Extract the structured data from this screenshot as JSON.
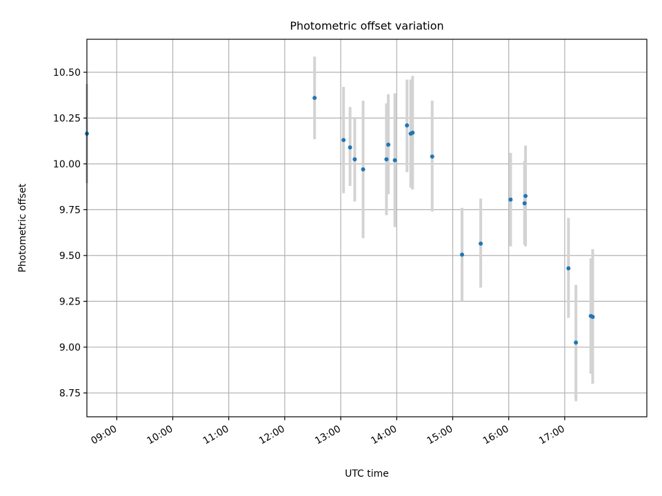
{
  "colors": {
    "point": "#1f77b4",
    "errorbar": "#d3d3d3",
    "grid": "#b0b0b0",
    "axes": "#000000"
  },
  "chart_data": {
    "type": "scatter",
    "title": "Photometric offset variation",
    "xlabel": "UTC time",
    "ylabel": "Photometric offset",
    "grid": true,
    "x_is_time": true,
    "xlim": [
      "08:28",
      "18:28"
    ],
    "ylim": [
      8.62,
      10.68
    ],
    "x_ticks": [
      "09:00",
      "10:00",
      "11:00",
      "12:00",
      "13:00",
      "14:00",
      "15:00",
      "16:00",
      "17:00"
    ],
    "y_ticks": [
      "8.75",
      "9.00",
      "9.25",
      "9.50",
      "9.75",
      "10.00",
      "10.25",
      "10.50"
    ],
    "points": [
      {
        "t": "08:28",
        "y": 10.165,
        "lo": 9.895,
        "hi": 10.435
      },
      {
        "t": "12:32",
        "y": 10.36,
        "lo": 10.135,
        "hi": 10.585
      },
      {
        "t": "13:03",
        "y": 10.13,
        "lo": 9.84,
        "hi": 10.42
      },
      {
        "t": "13:10",
        "y": 10.09,
        "lo": 9.88,
        "hi": 10.31
      },
      {
        "t": "13:15",
        "y": 10.025,
        "lo": 9.795,
        "hi": 10.255
      },
      {
        "t": "13:24",
        "y": 9.97,
        "lo": 9.595,
        "hi": 10.345
      },
      {
        "t": "13:49",
        "y": 10.025,
        "lo": 9.72,
        "hi": 10.33
      },
      {
        "t": "13:51",
        "y": 10.105,
        "lo": 9.835,
        "hi": 10.38
      },
      {
        "t": "13:58",
        "y": 10.02,
        "lo": 9.655,
        "hi": 10.385
      },
      {
        "t": "14:11",
        "y": 10.21,
        "lo": 9.955,
        "hi": 10.46
      },
      {
        "t": "14:15",
        "y": 10.165,
        "lo": 9.87,
        "hi": 10.46
      },
      {
        "t": "14:17",
        "y": 10.17,
        "lo": 9.86,
        "hi": 10.48
      },
      {
        "t": "14:38",
        "y": 10.04,
        "lo": 9.74,
        "hi": 10.345
      },
      {
        "t": "15:10",
        "y": 9.505,
        "lo": 9.25,
        "hi": 9.76
      },
      {
        "t": "15:30",
        "y": 9.565,
        "lo": 9.325,
        "hi": 9.81
      },
      {
        "t": "16:02",
        "y": 9.805,
        "lo": 9.55,
        "hi": 10.06
      },
      {
        "t": "16:17",
        "y": 9.785,
        "lo": 9.56,
        "hi": 10.015
      },
      {
        "t": "16:18",
        "y": 9.825,
        "lo": 9.55,
        "hi": 10.1
      },
      {
        "t": "17:04",
        "y": 9.43,
        "lo": 9.16,
        "hi": 9.705
      },
      {
        "t": "17:12",
        "y": 9.025,
        "lo": 8.705,
        "hi": 9.34
      },
      {
        "t": "17:28",
        "y": 9.17,
        "lo": 8.855,
        "hi": 9.485
      },
      {
        "t": "17:30",
        "y": 9.165,
        "lo": 8.8,
        "hi": 9.535
      }
    ]
  }
}
